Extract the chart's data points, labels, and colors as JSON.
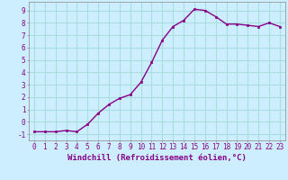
{
  "x": [
    0,
    1,
    2,
    3,
    4,
    5,
    6,
    7,
    8,
    9,
    10,
    11,
    12,
    13,
    14,
    15,
    16,
    17,
    18,
    19,
    20,
    21,
    22,
    23
  ],
  "y": [
    -0.8,
    -0.8,
    -0.8,
    -0.7,
    -0.8,
    -0.2,
    0.7,
    1.4,
    1.9,
    2.2,
    3.2,
    4.8,
    6.6,
    7.7,
    8.2,
    9.1,
    9.0,
    8.5,
    7.9,
    7.9,
    7.8,
    7.7,
    8.0,
    7.7
  ],
  "line_color": "#880088",
  "marker": "s",
  "marker_size": 2,
  "xlabel": "Windchill (Refroidissement éolien,°C)",
  "ylabel_ticks": [
    "-1",
    "0",
    "1",
    "2",
    "3",
    "4",
    "5",
    "6",
    "7",
    "8",
    "9"
  ],
  "yticks": [
    -1,
    0,
    1,
    2,
    3,
    4,
    5,
    6,
    7,
    8,
    9
  ],
  "ylim": [
    -1.5,
    9.7
  ],
  "xlim": [
    -0.5,
    23.5
  ],
  "xticks": [
    0,
    1,
    2,
    3,
    4,
    5,
    6,
    7,
    8,
    9,
    10,
    11,
    12,
    13,
    14,
    15,
    16,
    17,
    18,
    19,
    20,
    21,
    22,
    23
  ],
  "bg_color": "#cceeff",
  "grid_color": "#aadddd",
  "tick_label_color": "#880088",
  "xlabel_color": "#880088",
  "tick_fontsize": 5.5,
  "xlabel_fontsize": 6.5,
  "linewidth": 1.0
}
